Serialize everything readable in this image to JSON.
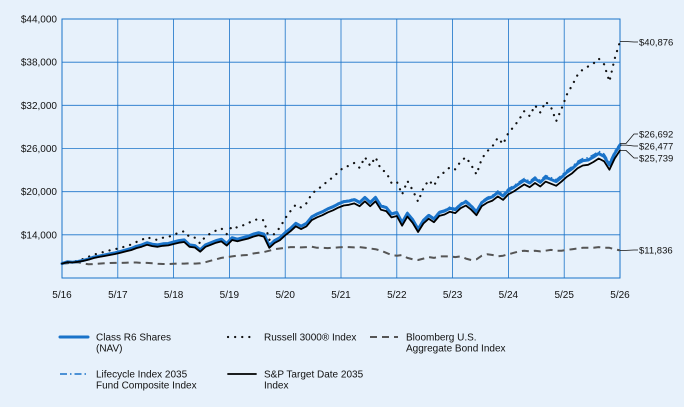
{
  "chart_data": {
    "type": "line",
    "x_ticks": [
      "5/16",
      "5/17",
      "5/18",
      "5/19",
      "5/20",
      "5/21",
      "5/22",
      "5/23",
      "5/24",
      "5/25",
      "5/26"
    ],
    "y_ticks": [
      "$14,000",
      "$20,000",
      "$26,000",
      "$32,000",
      "$38,000",
      "$44,000"
    ],
    "ylim": [
      8000,
      44000
    ],
    "grid": true,
    "legend_position": "bottom",
    "end_labels": [
      "$40,876",
      "$26,692",
      "$26,477",
      "$25,739",
      "$11,836"
    ],
    "series": [
      {
        "name": "Class R6 Shares (NAV)",
        "name_lines": [
          "Class R6 Shares",
          "(NAV)"
        ],
        "color": "#1a73c9",
        "style": "solid-thick",
        "end_label": "$26,477",
        "values": [
          10000,
          10250,
          10200,
          10300,
          10450,
          10650,
          10900,
          11050,
          11200,
          11350,
          11500,
          11700,
          11900,
          12100,
          12400,
          12600,
          12900,
          12700,
          12600,
          12750,
          12800,
          13000,
          13200,
          13300,
          12600,
          12500,
          11900,
          12600,
          12900,
          13200,
          13400,
          12800,
          13600,
          13400,
          13600,
          13800,
          14100,
          14300,
          14100,
          12500,
          13200,
          13600,
          14300,
          14900,
          15600,
          15200,
          15600,
          16500,
          16900,
          17200,
          17600,
          17900,
          18300,
          18600,
          18700,
          18900,
          18500,
          19200,
          18500,
          19200,
          18000,
          17800,
          16900,
          17100,
          15700,
          17000,
          16100,
          14800,
          16000,
          16700,
          16200,
          17100,
          17300,
          17700,
          17500,
          18200,
          18600,
          18000,
          17200,
          18500,
          19000,
          19300,
          19900,
          19400,
          20200,
          20600,
          21100,
          21600,
          21200,
          21800,
          21300,
          22000,
          21700,
          21400,
          22000,
          22700,
          23200,
          23900,
          24300,
          24400,
          24800,
          25300,
          24900,
          23700,
          25300,
          26477
        ]
      },
      {
        "name": "Russell 3000® Index",
        "name_lines": [
          "Russell 3000® Index"
        ],
        "color": "#111111",
        "style": "dotted",
        "end_label": "$40,876",
        "values": [
          10000,
          10300,
          10250,
          10400,
          10650,
          10950,
          11250,
          11450,
          11650,
          11850,
          12000,
          12200,
          12400,
          12650,
          13000,
          13300,
          13700,
          13400,
          13300,
          13600,
          13700,
          14000,
          14300,
          14500,
          13700,
          13600,
          12800,
          13800,
          14200,
          14600,
          14900,
          14100,
          15200,
          15000,
          15300,
          15600,
          16000,
          16200,
          16000,
          13300,
          14200,
          15000,
          16300,
          17300,
          18200,
          17800,
          18400,
          19700,
          20300,
          20800,
          21500,
          22000,
          22700,
          23400,
          23600,
          24000,
          23300,
          24800,
          23600,
          24800,
          23100,
          22700,
          21200,
          21400,
          19600,
          21500,
          20200,
          18600,
          20500,
          21600,
          20800,
          22300,
          22700,
          23400,
          23100,
          24200,
          24800,
          23700,
          22400,
          24600,
          25600,
          26300,
          27500,
          26600,
          28200,
          29000,
          30000,
          31200,
          30500,
          32000,
          31000,
          32500,
          31800,
          29800,
          31500,
          33500,
          34800,
          36200,
          37000,
          37400,
          37800,
          38500,
          37700,
          35300,
          38500,
          40876
        ]
      },
      {
        "name": "Bloomberg U.S. Aggregate Bond Index",
        "name_lines": [
          "Bloomberg U.S.",
          "Aggregate Bond Index"
        ],
        "color": "#555555",
        "style": "dashed",
        "end_label": "$11,836",
        "values": [
          10000,
          10050,
          10150,
          10180,
          10020,
          9900,
          9950,
          10000,
          10050,
          10080,
          10100,
          10100,
          10120,
          10150,
          10150,
          10100,
          10100,
          10050,
          9980,
          9950,
          9950,
          9980,
          10000,
          10000,
          10050,
          10000,
          10050,
          10200,
          10400,
          10600,
          10800,
          10900,
          11000,
          11100,
          11150,
          11200,
          11400,
          11500,
          11600,
          11800,
          12000,
          12100,
          12200,
          12300,
          12300,
          12250,
          12300,
          12350,
          12200,
          12200,
          12150,
          12200,
          12250,
          12300,
          12300,
          12250,
          12300,
          12200,
          12100,
          12000,
          11800,
          11500,
          11200,
          11100,
          11200,
          10800,
          10600,
          10500,
          10700,
          10900,
          10800,
          11000,
          11000,
          11000,
          10900,
          11000,
          10700,
          10500,
          10600,
          11100,
          11300,
          11200,
          11000,
          11100,
          11300,
          11500,
          11700,
          11800,
          11700,
          11800,
          11700,
          11800,
          11900,
          11800,
          11800,
          11900,
          12000,
          12100,
          12200,
          12200,
          12200,
          12300,
          12200,
          12200,
          12000,
          11836
        ]
      },
      {
        "name": "Lifecycle Index 2035 Fund Composite Index",
        "name_lines": [
          "Lifecycle Index 2035",
          "Fund Composite Index"
        ],
        "color": "#1a73c9",
        "style": "dashdot",
        "end_label": "$26,692",
        "values": [
          10000,
          10260,
          10210,
          10310,
          10460,
          10660,
          10920,
          11070,
          11220,
          11370,
          11520,
          11720,
          11920,
          12130,
          12430,
          12630,
          12940,
          12740,
          12640,
          12790,
          12840,
          13040,
          13240,
          13350,
          12650,
          12550,
          11950,
          12650,
          12960,
          13260,
          13460,
          12860,
          13660,
          13460,
          13660,
          13870,
          14170,
          14370,
          14170,
          12550,
          13260,
          13670,
          14380,
          14980,
          15690,
          15290,
          15690,
          16600,
          17000,
          17310,
          17720,
          18020,
          18420,
          18720,
          18830,
          19030,
          18630,
          19330,
          18630,
          19340,
          18130,
          17930,
          17030,
          17230,
          15830,
          17140,
          16240,
          14940,
          16150,
          16850,
          16350,
          17260,
          17460,
          17870,
          17670,
          18380,
          18780,
          18180,
          17380,
          18690,
          19200,
          19500,
          20110,
          19610,
          20420,
          20830,
          21340,
          21850,
          21450,
          22050,
          21560,
          22260,
          21970,
          21670,
          22280,
          22980,
          23500,
          24210,
          24610,
          24720,
          25130,
          25630,
          25240,
          24040,
          25640,
          26692
        ]
      },
      {
        "name": "S&P Target Date 2035 Index",
        "name_lines": [
          "S&P Target Date 2035",
          "Index"
        ],
        "color": "#000000",
        "style": "solid",
        "end_label": "$25,739",
        "values": [
          10000,
          10200,
          10150,
          10250,
          10380,
          10560,
          10780,
          10930,
          11060,
          11200,
          11330,
          11520,
          11700,
          11880,
          12160,
          12350,
          12620,
          12430,
          12330,
          12480,
          12530,
          12720,
          12900,
          13000,
          12340,
          12240,
          11660,
          12330,
          12620,
          12900,
          13090,
          12510,
          13280,
          13100,
          13290,
          13480,
          13760,
          13950,
          13760,
          12200,
          12860,
          13250,
          13930,
          14510,
          15180,
          14800,
          15180,
          16050,
          16440,
          16730,
          17120,
          17410,
          17790,
          18080,
          18180,
          18370,
          17980,
          18660,
          17980,
          18660,
          17500,
          17300,
          16430,
          16620,
          15270,
          16530,
          15660,
          14400,
          15570,
          16240,
          15760,
          16630,
          16820,
          17210,
          17020,
          17700,
          18080,
          17500,
          16730,
          17990,
          18470,
          18760,
          19340,
          18860,
          19640,
          20030,
          20520,
          21010,
          20620,
          21200,
          20720,
          21400,
          21110,
          20820,
          21400,
          22080,
          22560,
          23250,
          23640,
          23740,
          24120,
          24610,
          24220,
          23060,
          24610,
          25739
        ]
      }
    ]
  }
}
